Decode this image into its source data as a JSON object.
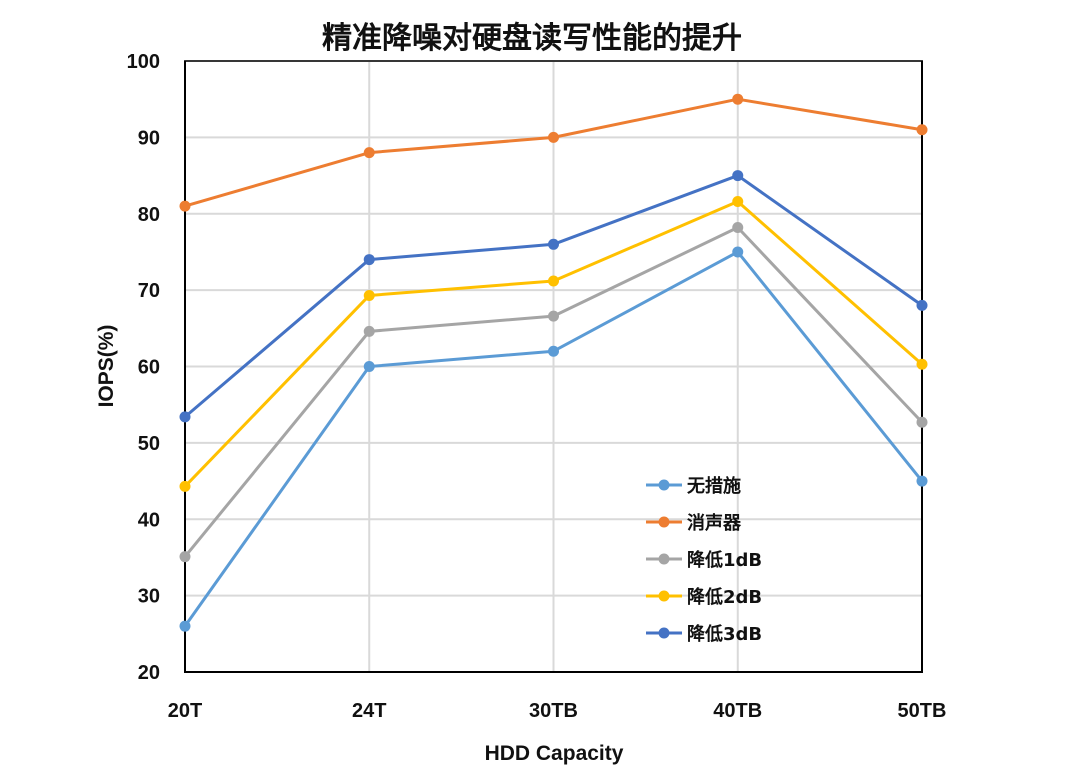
{
  "chart_data": {
    "type": "line",
    "title": "精准降噪对硬盘读写性能的提升",
    "xlabel": "HDD Capacity",
    "ylabel": "IOPS(%)",
    "categories": [
      "20T",
      "24T",
      "30TB",
      "40TB",
      "50TB"
    ],
    "ylim": [
      20,
      100
    ],
    "yticks": [
      20,
      30,
      40,
      50,
      60,
      70,
      80,
      90,
      100
    ],
    "grid": true,
    "legend_position": "bottom-right",
    "series": [
      {
        "name": "无措施",
        "color": "#5B9BD5",
        "values": [
          26,
          60,
          62,
          75,
          45
        ]
      },
      {
        "name": "消声器",
        "color": "#ED7D31",
        "values": [
          81,
          88,
          90,
          95,
          91
        ]
      },
      {
        "name": "降低1dB",
        "color": "#A5A5A5",
        "values": [
          35.1,
          64.6,
          66.6,
          78.2,
          52.7
        ]
      },
      {
        "name": "降低2dB",
        "color": "#FFC000",
        "values": [
          44.3,
          69.3,
          71.2,
          81.6,
          60.3
        ]
      },
      {
        "name": "降低3dB",
        "color": "#4472C4",
        "values": [
          53.4,
          74,
          76,
          85,
          68
        ]
      }
    ]
  }
}
